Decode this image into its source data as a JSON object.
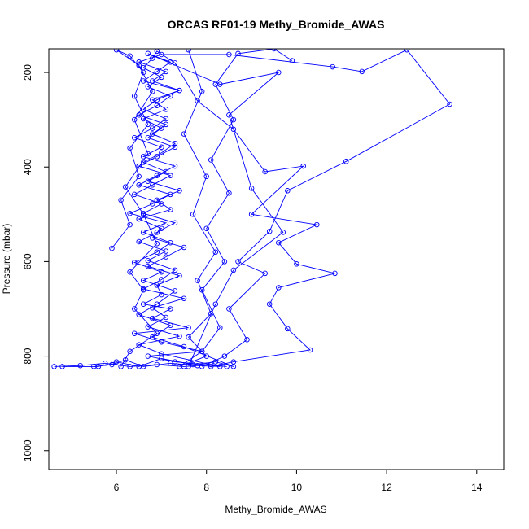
{
  "chart_data": {
    "type": "line",
    "title": "ORCAS RF01-19 Methy_Bromide_AWAS",
    "xlabel": "Methy_Bromide_AWAS",
    "ylabel": "Pressure (mbar)",
    "xlim": [
      4.5,
      14.6
    ],
    "ylim": [
      1040,
      150
    ],
    "y_reversed": true,
    "x_ticks": [
      6,
      8,
      10,
      12,
      14
    ],
    "y_ticks": [
      200,
      400,
      600,
      800,
      1000
    ],
    "grid": false,
    "legend": "none",
    "colors": {
      "series": "#0000ff",
      "axis": "#000000",
      "background": "#ffffff"
    },
    "series": [
      {
        "points": [
          [
            4.62,
            822
          ],
          [
            5.2,
            820
          ],
          [
            5.75,
            815
          ],
          [
            6.3,
            822
          ],
          [
            6.9,
            818
          ],
          [
            7.5,
            822
          ],
          [
            8.1,
            818
          ],
          [
            8.45,
            822
          ],
          [
            7.3,
            812
          ],
          [
            6.7,
            800
          ],
          [
            7.9,
            790
          ],
          [
            7.0,
            770
          ],
          [
            6.4,
            752
          ],
          [
            7.6,
            740
          ],
          [
            6.8,
            720
          ],
          [
            7.2,
            700
          ],
          [
            6.6,
            690
          ],
          [
            7.0,
            670
          ],
          [
            6.9,
            650
          ],
          [
            7.4,
            630
          ],
          [
            6.7,
            610
          ],
          [
            7.1,
            590
          ],
          [
            7.5,
            570
          ],
          [
            6.8,
            550
          ],
          [
            7.0,
            530
          ],
          [
            6.5,
            510
          ],
          [
            7.2,
            490
          ],
          [
            6.9,
            470
          ],
          [
            7.4,
            450
          ],
          [
            6.7,
            430
          ],
          [
            7.1,
            410
          ],
          [
            6.6,
            390
          ],
          [
            7.0,
            370
          ],
          [
            7.3,
            350
          ],
          [
            6.8,
            330
          ],
          [
            7.1,
            310
          ],
          [
            6.5,
            290
          ],
          [
            6.9,
            270
          ],
          [
            7.2,
            250
          ],
          [
            6.7,
            230
          ],
          [
            7.0,
            210
          ],
          [
            6.6,
            190
          ],
          [
            6.8,
            170
          ],
          [
            6.9,
            155
          ],
          [
            7.3,
            180
          ],
          [
            7.8,
            260
          ],
          [
            8.6,
            320
          ],
          [
            9.3,
            410
          ],
          [
            10.15,
            398
          ],
          [
            9.0,
            500
          ],
          [
            10.45,
            522
          ],
          [
            9.6,
            560
          ],
          [
            10.0,
            605
          ],
          [
            10.85,
            625
          ],
          [
            9.6,
            655
          ],
          [
            9.4,
            690
          ],
          [
            9.8,
            742
          ],
          [
            10.3,
            787
          ],
          [
            8.6,
            812
          ],
          [
            8.1,
            822
          ]
        ]
      },
      {
        "points": [
          [
            4.8,
            822
          ],
          [
            5.6,
            822
          ],
          [
            6.0,
            812
          ],
          [
            6.5,
            822
          ],
          [
            7.0,
            805
          ],
          [
            7.7,
            818
          ],
          [
            8.2,
            812
          ],
          [
            8.6,
            822
          ],
          [
            7.5,
            780
          ],
          [
            6.8,
            760
          ],
          [
            7.2,
            735
          ],
          [
            6.5,
            712
          ],
          [
            6.9,
            690
          ],
          [
            7.3,
            662
          ],
          [
            6.6,
            640
          ],
          [
            7.0,
            622
          ],
          [
            6.4,
            602
          ],
          [
            6.9,
            580
          ],
          [
            7.2,
            560
          ],
          [
            6.6,
            538
          ],
          [
            7.1,
            518
          ],
          [
            6.3,
            498
          ],
          [
            6.8,
            478
          ],
          [
            7.2,
            458
          ],
          [
            6.5,
            438
          ],
          [
            6.9,
            418
          ],
          [
            7.3,
            398
          ],
          [
            6.6,
            378
          ],
          [
            7.0,
            358
          ],
          [
            6.4,
            338
          ],
          [
            6.8,
            318
          ],
          [
            7.1,
            298
          ],
          [
            6.6,
            278
          ],
          [
            6.9,
            258
          ],
          [
            7.4,
            238
          ],
          [
            6.8,
            218
          ],
          [
            7.1,
            198
          ],
          [
            6.5,
            178
          ],
          [
            7.0,
            162
          ],
          [
            8.5,
            162
          ],
          [
            10.8,
            188
          ],
          [
            11.45,
            198
          ],
          [
            12.45,
            152
          ],
          [
            13.4,
            267
          ],
          [
            11.1,
            388
          ],
          [
            9.8,
            450
          ],
          [
            9.4,
            536
          ],
          [
            8.7,
            600
          ],
          [
            9.3,
            625
          ],
          [
            8.5,
            700
          ],
          [
            8.9,
            765
          ],
          [
            8.4,
            800
          ],
          [
            7.9,
            822
          ]
        ]
      },
      {
        "points": [
          [
            5.5,
            822
          ],
          [
            5.9,
            818
          ],
          [
            6.2,
            808
          ],
          [
            6.6,
            822
          ],
          [
            7.2,
            815
          ],
          [
            7.8,
            820
          ],
          [
            8.3,
            822
          ],
          [
            7.0,
            795
          ],
          [
            6.5,
            776
          ],
          [
            7.4,
            758
          ],
          [
            6.7,
            738
          ],
          [
            7.1,
            718
          ],
          [
            6.8,
            698
          ],
          [
            7.5,
            678
          ],
          [
            6.6,
            658
          ],
          [
            7.0,
            638
          ],
          [
            7.3,
            618
          ],
          [
            6.7,
            598
          ],
          [
            7.1,
            578
          ],
          [
            6.5,
            558
          ],
          [
            6.9,
            538
          ],
          [
            7.3,
            518
          ],
          [
            6.6,
            498
          ],
          [
            7.0,
            478
          ],
          [
            6.4,
            458
          ],
          [
            6.8,
            438
          ],
          [
            7.2,
            418
          ],
          [
            6.5,
            398
          ],
          [
            6.9,
            378
          ],
          [
            7.3,
            358
          ],
          [
            6.7,
            338
          ],
          [
            7.0,
            318
          ],
          [
            6.6,
            298
          ],
          [
            7.1,
            278
          ],
          [
            6.8,
            258
          ],
          [
            7.4,
            238
          ],
          [
            6.6,
            218
          ],
          [
            6.9,
            198
          ],
          [
            7.2,
            178
          ],
          [
            6.7,
            160
          ],
          [
            8.3,
            225
          ],
          [
            9.6,
            200
          ],
          [
            8.5,
            290
          ],
          [
            9.0,
            445
          ],
          [
            9.7,
            538
          ],
          [
            8.6,
            618
          ],
          [
            8.2,
            690
          ],
          [
            7.6,
            822
          ]
        ]
      },
      {
        "points": [
          [
            5.9,
            572
          ],
          [
            6.3,
            522
          ],
          [
            6.1,
            470
          ],
          [
            6.5,
            420
          ],
          [
            6.3,
            360
          ],
          [
            6.7,
            310
          ],
          [
            6.4,
            250
          ],
          [
            6.6,
            200
          ],
          [
            6.3,
            165
          ],
          [
            6.0,
            152
          ],
          [
            6.5,
            185
          ],
          [
            6.8,
            240
          ],
          [
            6.4,
            300
          ],
          [
            6.7,
            372
          ],
          [
            6.2,
            442
          ],
          [
            6.6,
            500
          ],
          [
            6.9,
            562
          ],
          [
            6.3,
            622
          ],
          [
            6.6,
            660
          ],
          [
            6.4,
            700
          ],
          [
            6.9,
            752
          ],
          [
            6.3,
            790
          ],
          [
            6.1,
            822
          ]
        ]
      },
      {
        "points": [
          [
            7.6,
            152
          ],
          [
            7.9,
            240
          ],
          [
            7.5,
            330
          ],
          [
            8.0,
            420
          ],
          [
            7.7,
            500
          ],
          [
            8.2,
            580
          ],
          [
            7.8,
            640
          ],
          [
            8.1,
            710
          ],
          [
            7.6,
            760
          ],
          [
            8.0,
            800
          ],
          [
            7.4,
            822
          ],
          [
            7.9,
            790
          ],
          [
            8.3,
            740
          ],
          [
            7.9,
            660
          ],
          [
            8.4,
            600
          ],
          [
            8.0,
            530
          ],
          [
            8.5,
            455
          ],
          [
            8.1,
            385
          ],
          [
            8.6,
            300
          ],
          [
            8.2,
            225
          ],
          [
            8.7,
            160
          ],
          [
            9.5,
            150
          ],
          [
            9.9,
            175
          ]
        ]
      }
    ]
  }
}
